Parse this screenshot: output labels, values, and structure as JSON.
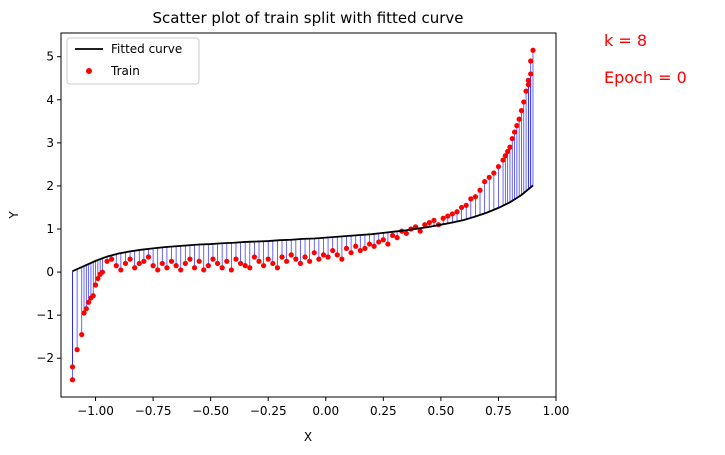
{
  "chart_data": {
    "type": "scatter",
    "title": "Scatter plot of train split with fitted curve",
    "xlabel": "X",
    "ylabel": "Y",
    "xlim": [
      -1.15,
      1.0
    ],
    "ylim": [
      -2.9,
      5.55
    ],
    "xticks": [
      -1.0,
      -0.75,
      -0.5,
      -0.25,
      0.0,
      0.25,
      0.5,
      0.75,
      1.0
    ],
    "xtick_labels": [
      "−1.00",
      "−0.75",
      "−0.50",
      "−0.25",
      "0.00",
      "0.25",
      "0.50",
      "0.75",
      "1.00"
    ],
    "yticks": [
      -2,
      -1,
      0,
      1,
      2,
      3,
      4,
      5
    ],
    "ytick_labels": [
      "−2",
      "−1",
      "0",
      "1",
      "2",
      "3",
      "4",
      "5"
    ],
    "grid": false,
    "legend_position": "top-left",
    "legend": [
      {
        "label": "Fitted curve",
        "kind": "line",
        "color": "#000000"
      },
      {
        "label": "Train",
        "kind": "marker",
        "color": "#ff0000"
      }
    ],
    "residual_color": "#0000ff",
    "fitted_curve": {
      "x": [
        -1.1,
        -1.05,
        -1.0,
        -0.95,
        -0.9,
        -0.85,
        -0.8,
        -0.75,
        -0.7,
        -0.65,
        -0.6,
        -0.55,
        -0.5,
        -0.45,
        -0.4,
        -0.35,
        -0.3,
        -0.25,
        -0.2,
        -0.15,
        -0.1,
        -0.05,
        0.0,
        0.05,
        0.1,
        0.15,
        0.2,
        0.25,
        0.3,
        0.35,
        0.4,
        0.45,
        0.5,
        0.55,
        0.6,
        0.65,
        0.7,
        0.75,
        0.8,
        0.85,
        0.9
      ],
      "y": [
        0.02,
        0.14,
        0.26,
        0.36,
        0.43,
        0.48,
        0.52,
        0.55,
        0.58,
        0.6,
        0.62,
        0.64,
        0.65,
        0.67,
        0.68,
        0.7,
        0.71,
        0.72,
        0.74,
        0.75,
        0.77,
        0.78,
        0.8,
        0.82,
        0.84,
        0.86,
        0.88,
        0.91,
        0.94,
        0.97,
        1.01,
        1.05,
        1.1,
        1.15,
        1.21,
        1.29,
        1.38,
        1.49,
        1.62,
        1.79,
        2.01
      ]
    },
    "series": [
      {
        "name": "Train",
        "x": [
          -1.1,
          -1.1,
          -1.08,
          -1.06,
          -1.05,
          -1.04,
          -1.03,
          -1.02,
          -1.01,
          -1.0,
          -0.99,
          -0.98,
          -0.97,
          -0.95,
          -0.93,
          -0.91,
          -0.89,
          -0.87,
          -0.85,
          -0.83,
          -0.81,
          -0.79,
          -0.77,
          -0.75,
          -0.73,
          -0.71,
          -0.69,
          -0.67,
          -0.65,
          -0.63,
          -0.61,
          -0.59,
          -0.57,
          -0.55,
          -0.53,
          -0.51,
          -0.49,
          -0.47,
          -0.45,
          -0.43,
          -0.41,
          -0.39,
          -0.37,
          -0.35,
          -0.33,
          -0.31,
          -0.29,
          -0.27,
          -0.25,
          -0.23,
          -0.21,
          -0.19,
          -0.17,
          -0.15,
          -0.13,
          -0.11,
          -0.09,
          -0.07,
          -0.05,
          -0.03,
          -0.01,
          0.01,
          0.03,
          0.05,
          0.07,
          0.09,
          0.11,
          0.13,
          0.15,
          0.17,
          0.19,
          0.21,
          0.23,
          0.25,
          0.27,
          0.29,
          0.31,
          0.33,
          0.35,
          0.37,
          0.39,
          0.41,
          0.43,
          0.45,
          0.47,
          0.49,
          0.51,
          0.53,
          0.55,
          0.57,
          0.59,
          0.61,
          0.63,
          0.65,
          0.67,
          0.69,
          0.71,
          0.73,
          0.75,
          0.77,
          0.78,
          0.79,
          0.8,
          0.81,
          0.82,
          0.83,
          0.84,
          0.85,
          0.86,
          0.87,
          0.88,
          0.88,
          0.89,
          0.89,
          0.9
        ],
        "y": [
          -2.5,
          -2.2,
          -1.8,
          -1.45,
          -0.95,
          -0.85,
          -0.7,
          -0.6,
          -0.55,
          -0.3,
          -0.15,
          -0.05,
          0.0,
          0.25,
          0.3,
          0.15,
          0.05,
          0.2,
          0.3,
          0.1,
          0.2,
          0.25,
          0.35,
          0.15,
          0.05,
          0.2,
          0.1,
          0.25,
          0.15,
          0.05,
          0.2,
          0.3,
          0.1,
          0.25,
          0.05,
          0.15,
          0.3,
          0.2,
          0.1,
          0.25,
          0.05,
          0.3,
          0.2,
          0.15,
          0.1,
          0.35,
          0.25,
          0.15,
          0.3,
          0.2,
          0.1,
          0.35,
          0.25,
          0.4,
          0.3,
          0.2,
          0.35,
          0.25,
          0.45,
          0.3,
          0.4,
          0.35,
          0.5,
          0.4,
          0.3,
          0.55,
          0.45,
          0.6,
          0.5,
          0.55,
          0.65,
          0.6,
          0.7,
          0.75,
          0.65,
          0.85,
          0.8,
          0.95,
          0.9,
          1.0,
          1.05,
          0.95,
          1.1,
          1.15,
          1.2,
          1.1,
          1.25,
          1.3,
          1.35,
          1.4,
          1.5,
          1.55,
          1.7,
          1.75,
          1.9,
          2.1,
          2.2,
          2.3,
          2.45,
          2.6,
          2.7,
          2.8,
          2.9,
          3.1,
          3.25,
          3.4,
          3.55,
          3.75,
          3.95,
          4.2,
          4.35,
          4.45,
          4.6,
          4.9,
          5.15
        ]
      }
    ]
  },
  "annotations": {
    "k_label": "k = 8",
    "epoch_label": "Epoch = 0"
  }
}
